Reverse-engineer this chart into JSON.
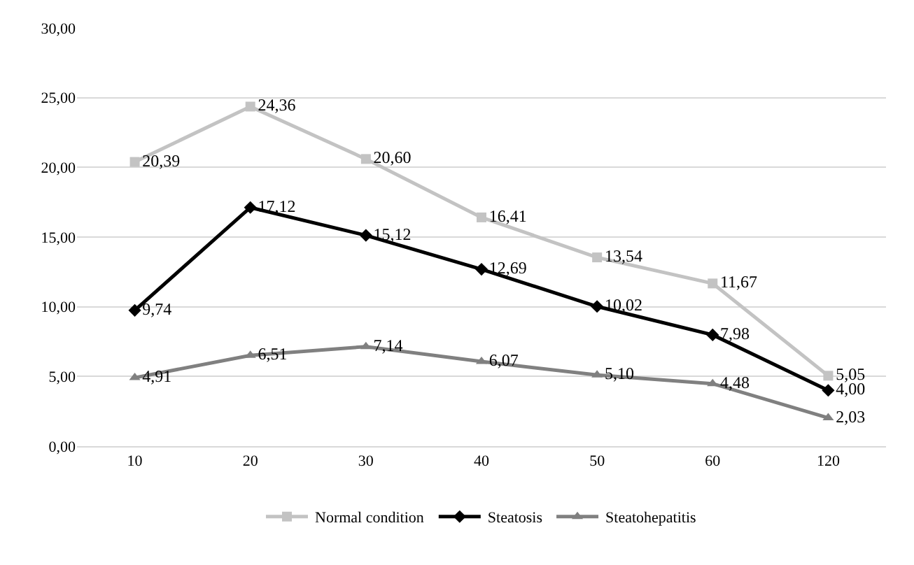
{
  "chart_data": {
    "type": "line",
    "categories": [
      "10",
      "20",
      "30",
      "40",
      "50",
      "60",
      "120"
    ],
    "series": [
      {
        "name": "Normal condition",
        "color": "#c3c3c3",
        "marker": "square",
        "values": [
          20.39,
          24.36,
          20.6,
          16.41,
          13.54,
          11.67,
          5.05
        ],
        "value_labels": [
          "20,39",
          "24,36",
          "20,60",
          "16,41",
          "13,54",
          "11,67",
          "5,05"
        ]
      },
      {
        "name": "Steatosis",
        "color": "#000000",
        "marker": "diamond",
        "values": [
          9.74,
          17.12,
          15.12,
          12.69,
          10.02,
          7.98,
          4.0
        ],
        "value_labels": [
          "9,74",
          "17,12",
          "15,12",
          "12,69",
          "10,02",
          "7,98",
          "4,00"
        ]
      },
      {
        "name": "Steatohepatitis",
        "color": "#808080",
        "marker": "triangle",
        "values": [
          4.91,
          6.51,
          7.14,
          6.07,
          5.1,
          4.48,
          2.03
        ],
        "value_labels": [
          "4,91",
          "6,51",
          "7,14",
          "6,07",
          "5,10",
          "4,48",
          "2,03"
        ]
      }
    ],
    "ylim": [
      0,
      30
    ],
    "yticks": [
      {
        "value": 0,
        "label": "0,00"
      },
      {
        "value": 5,
        "label": "5,00"
      },
      {
        "value": 10,
        "label": "10,00"
      },
      {
        "value": 15,
        "label": "15,00"
      },
      {
        "value": 20,
        "label": "20,00"
      },
      {
        "value": 25,
        "label": "25,00"
      },
      {
        "value": 30,
        "label": "30,00"
      }
    ],
    "grid": "y",
    "legend": "bottom",
    "line_style": "solid"
  }
}
